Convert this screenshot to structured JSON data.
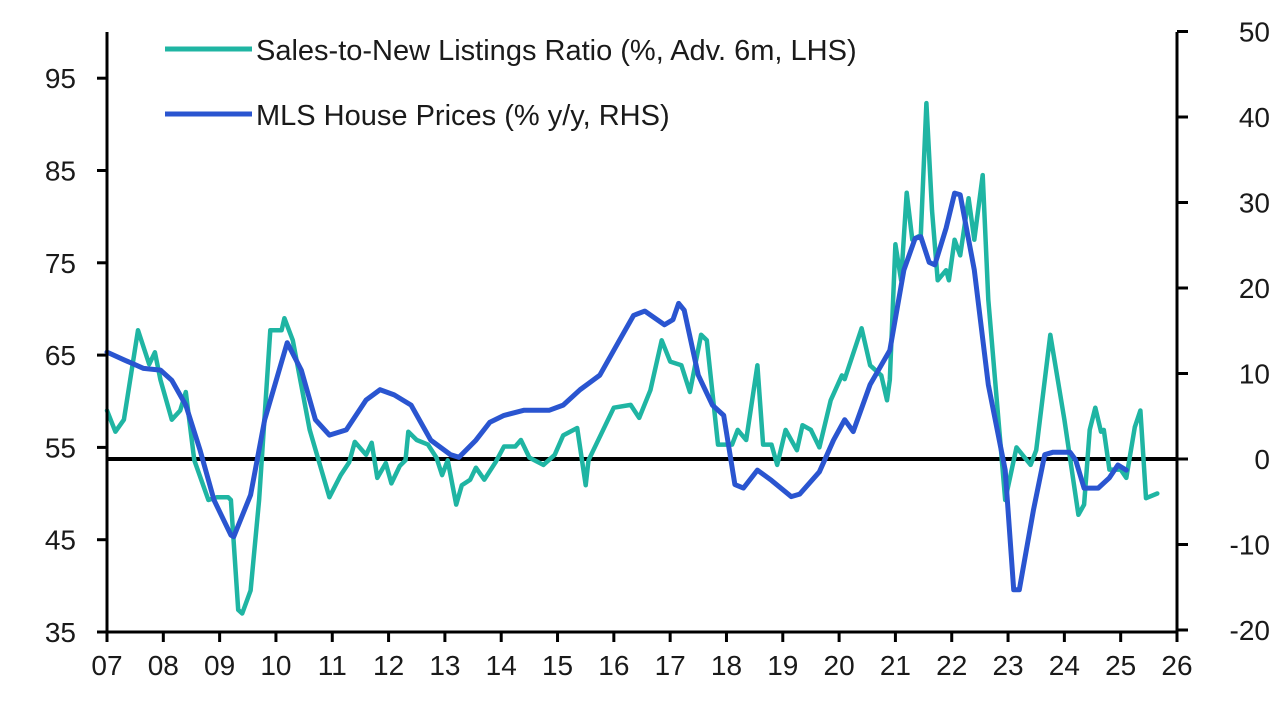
{
  "chart_data": {
    "type": "line",
    "title": "",
    "legend_position": "top-left",
    "grid": false,
    "x_axis": {
      "range": [
        2007,
        2026
      ],
      "tick_labels": [
        "07",
        "08",
        "09",
        "10",
        "11",
        "12",
        "13",
        "14",
        "15",
        "16",
        "17",
        "18",
        "19",
        "20",
        "21",
        "22",
        "23",
        "24",
        "25",
        "26"
      ]
    },
    "y_left": {
      "range": [
        35,
        100
      ],
      "ticks": [
        35,
        45,
        55,
        65,
        75,
        85,
        95
      ],
      "tick_labels": [
        "35",
        "45",
        "55",
        "65",
        "75",
        "85",
        "95"
      ]
    },
    "y_right": {
      "range": [
        -20,
        50
      ],
      "ticks": [
        -20,
        -10,
        0,
        10,
        20,
        30,
        40,
        50
      ],
      "tick_labels": [
        "-20",
        "-10",
        "0",
        "10",
        "20",
        "30",
        "40",
        "50"
      ]
    },
    "reference_line": {
      "axis": "right",
      "value": 0
    },
    "series": [
      {
        "name": "Sales-to-New Listings Ratio (%, Adv. 6m, LHS)",
        "axis": "left",
        "color": "#1fb5a3",
        "points": [
          [
            2007.0,
            59
          ],
          [
            2007.15,
            56.7
          ],
          [
            2007.3,
            58
          ],
          [
            2007.55,
            67.7
          ],
          [
            2007.75,
            64
          ],
          [
            2007.85,
            65.3
          ],
          [
            2007.95,
            62.3
          ],
          [
            2008.15,
            58
          ],
          [
            2008.3,
            59
          ],
          [
            2008.4,
            61
          ],
          [
            2008.55,
            53.6
          ],
          [
            2008.8,
            49.3
          ],
          [
            2008.95,
            49.6
          ],
          [
            2009.15,
            49.6
          ],
          [
            2009.2,
            49.3
          ],
          [
            2009.33,
            37.4
          ],
          [
            2009.4,
            37
          ],
          [
            2009.55,
            39.5
          ],
          [
            2009.7,
            49.3
          ],
          [
            2009.9,
            67.7
          ],
          [
            2010.1,
            67.7
          ],
          [
            2010.15,
            69
          ],
          [
            2010.3,
            66.6
          ],
          [
            2010.6,
            56.9
          ],
          [
            2010.95,
            49.6
          ],
          [
            2011.15,
            52
          ],
          [
            2011.3,
            53.4
          ],
          [
            2011.4,
            55.6
          ],
          [
            2011.6,
            54.2
          ],
          [
            2011.7,
            55.5
          ],
          [
            2011.8,
            51.7
          ],
          [
            2011.95,
            53.3
          ],
          [
            2012.05,
            51.1
          ],
          [
            2012.2,
            53
          ],
          [
            2012.3,
            53.6
          ],
          [
            2012.35,
            56.7
          ],
          [
            2012.5,
            55.8
          ],
          [
            2012.7,
            55.3
          ],
          [
            2012.85,
            53.9
          ],
          [
            2012.95,
            52
          ],
          [
            2013.05,
            53.6
          ],
          [
            2013.2,
            48.8
          ],
          [
            2013.3,
            50.9
          ],
          [
            2013.45,
            51.5
          ],
          [
            2013.55,
            52.8
          ],
          [
            2013.7,
            51.5
          ],
          [
            2013.9,
            53.4
          ],
          [
            2014.05,
            55.1
          ],
          [
            2014.25,
            55.1
          ],
          [
            2014.35,
            55.8
          ],
          [
            2014.5,
            53.9
          ],
          [
            2014.75,
            53.1
          ],
          [
            2014.95,
            54.2
          ],
          [
            2015.1,
            56.3
          ],
          [
            2015.35,
            57.1
          ],
          [
            2015.5,
            50.9
          ],
          [
            2015.55,
            53.6
          ],
          [
            2015.85,
            57.4
          ],
          [
            2016.0,
            59.3
          ],
          [
            2016.3,
            59.6
          ],
          [
            2016.45,
            58.2
          ],
          [
            2016.65,
            61.2
          ],
          [
            2016.85,
            66.6
          ],
          [
            2017.0,
            64.3
          ],
          [
            2017.2,
            63.9
          ],
          [
            2017.35,
            61
          ],
          [
            2017.55,
            67.2
          ],
          [
            2017.65,
            66.6
          ],
          [
            2017.85,
            55.3
          ],
          [
            2018.1,
            55.3
          ],
          [
            2018.2,
            56.9
          ],
          [
            2018.35,
            55.8
          ],
          [
            2018.55,
            63.9
          ],
          [
            2018.65,
            55.3
          ],
          [
            2018.8,
            55.3
          ],
          [
            2018.9,
            53.1
          ],
          [
            2019.05,
            56.9
          ],
          [
            2019.25,
            54.7
          ],
          [
            2019.35,
            57.4
          ],
          [
            2019.5,
            56.9
          ],
          [
            2019.65,
            55
          ],
          [
            2019.85,
            60.1
          ],
          [
            2020.05,
            62.8
          ],
          [
            2020.1,
            62.4
          ],
          [
            2020.4,
            67.9
          ],
          [
            2020.55,
            63.9
          ],
          [
            2020.75,
            62.8
          ],
          [
            2020.85,
            60.1
          ],
          [
            2020.9,
            62.3
          ],
          [
            2021.0,
            77
          ],
          [
            2021.1,
            73.1
          ],
          [
            2021.2,
            82.6
          ],
          [
            2021.3,
            77.5
          ],
          [
            2021.45,
            78
          ],
          [
            2021.55,
            92.3
          ],
          [
            2021.65,
            80.7
          ],
          [
            2021.75,
            73.1
          ],
          [
            2021.9,
            74.2
          ],
          [
            2021.95,
            73.1
          ],
          [
            2022.05,
            77.5
          ],
          [
            2022.15,
            75.8
          ],
          [
            2022.3,
            82
          ],
          [
            2022.4,
            77.5
          ],
          [
            2022.55,
            84.5
          ],
          [
            2022.65,
            71
          ],
          [
            2022.95,
            49.3
          ],
          [
            2023.15,
            55
          ],
          [
            2023.4,
            53.1
          ],
          [
            2023.5,
            54.7
          ],
          [
            2023.75,
            67.2
          ],
          [
            2024.0,
            58
          ],
          [
            2024.25,
            47.7
          ],
          [
            2024.35,
            48.8
          ],
          [
            2024.45,
            56.9
          ],
          [
            2024.55,
            59.3
          ],
          [
            2024.65,
            56.7
          ],
          [
            2024.7,
            56.9
          ],
          [
            2024.8,
            52.6
          ],
          [
            2025.0,
            52.6
          ],
          [
            2025.1,
            51.7
          ],
          [
            2025.25,
            57.2
          ],
          [
            2025.35,
            59
          ],
          [
            2025.45,
            49.5
          ],
          [
            2025.65,
            50
          ]
        ]
      },
      {
        "name": "MLS House Prices (% y/y, RHS)",
        "axis": "right",
        "color": "#2a55d0",
        "points": [
          [
            2007.0,
            12.5
          ],
          [
            2007.3,
            11.6
          ],
          [
            2007.65,
            10.6
          ],
          [
            2007.95,
            10.4
          ],
          [
            2008.15,
            9.2
          ],
          [
            2008.4,
            6.3
          ],
          [
            2008.65,
            1.1
          ],
          [
            2008.9,
            -4.8
          ],
          [
            2009.2,
            -8.9
          ],
          [
            2009.25,
            -9.1
          ],
          [
            2009.55,
            -4.2
          ],
          [
            2009.8,
            4.6
          ],
          [
            2010.2,
            13.6
          ],
          [
            2010.45,
            10.4
          ],
          [
            2010.7,
            4.6
          ],
          [
            2010.95,
            2.8
          ],
          [
            2011.25,
            3.4
          ],
          [
            2011.6,
            6.9
          ],
          [
            2011.85,
            8.1
          ],
          [
            2012.1,
            7.5
          ],
          [
            2012.4,
            6.3
          ],
          [
            2012.75,
            2.2
          ],
          [
            2013.1,
            0.5
          ],
          [
            2013.25,
            0.2
          ],
          [
            2013.55,
            2.2
          ],
          [
            2013.8,
            4.3
          ],
          [
            2014.05,
            5.1
          ],
          [
            2014.4,
            5.7
          ],
          [
            2014.85,
            5.7
          ],
          [
            2015.1,
            6.3
          ],
          [
            2015.4,
            8.1
          ],
          [
            2015.75,
            9.8
          ],
          [
            2016.1,
            13.9
          ],
          [
            2016.35,
            16.8
          ],
          [
            2016.55,
            17.3
          ],
          [
            2016.9,
            15.7
          ],
          [
            2017.05,
            16.3
          ],
          [
            2017.15,
            18.2
          ],
          [
            2017.25,
            17.4
          ],
          [
            2017.5,
            9.8
          ],
          [
            2017.75,
            6.3
          ],
          [
            2017.95,
            5.1
          ],
          [
            2018.15,
            -3
          ],
          [
            2018.3,
            -3.4
          ],
          [
            2018.55,
            -1.3
          ],
          [
            2018.8,
            -2.5
          ],
          [
            2019.15,
            -4.4
          ],
          [
            2019.3,
            -4.1
          ],
          [
            2019.65,
            -1.5
          ],
          [
            2019.9,
            2.2
          ],
          [
            2020.1,
            4.6
          ],
          [
            2020.25,
            3.2
          ],
          [
            2020.55,
            8.7
          ],
          [
            2020.9,
            12.7
          ],
          [
            2021.15,
            22.1
          ],
          [
            2021.35,
            25.8
          ],
          [
            2021.45,
            26
          ],
          [
            2021.6,
            23
          ],
          [
            2021.7,
            22.7
          ],
          [
            2021.9,
            27
          ],
          [
            2022.05,
            31.1
          ],
          [
            2022.15,
            30.9
          ],
          [
            2022.4,
            22.1
          ],
          [
            2022.65,
            8.7
          ],
          [
            2022.95,
            -1.3
          ],
          [
            2023.1,
            -15.3
          ],
          [
            2023.2,
            -15.3
          ],
          [
            2023.45,
            -6
          ],
          [
            2023.65,
            0.5
          ],
          [
            2023.8,
            0.8
          ],
          [
            2024.1,
            0.8
          ],
          [
            2024.2,
            -0.1
          ],
          [
            2024.35,
            -3.4
          ],
          [
            2024.6,
            -3.4
          ],
          [
            2024.8,
            -2.2
          ],
          [
            2024.95,
            -0.7
          ],
          [
            2025.1,
            -1.3
          ]
        ]
      }
    ]
  }
}
